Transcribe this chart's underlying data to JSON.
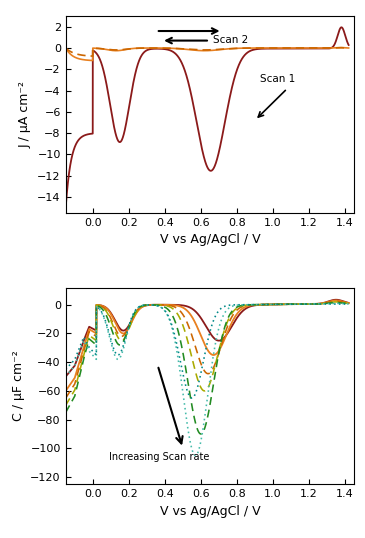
{
  "panel_a": {
    "xlabel": "V vs Ag/AgCl / V",
    "ylabel": "J / μA cm⁻²",
    "xlim": [
      -0.15,
      1.45
    ],
    "ylim": [
      -15.5,
      3
    ],
    "yticks": [
      2,
      0,
      -2,
      -4,
      -6,
      -8,
      -10,
      -12,
      -14
    ],
    "xticks": [
      0.0,
      0.2,
      0.4,
      0.6,
      0.8,
      1.0,
      1.2,
      1.4
    ]
  },
  "panel_b": {
    "xlabel": "V vs Ag/AgCl / V",
    "ylabel": "C / μF cm⁻²",
    "xlim": [
      -0.15,
      1.45
    ],
    "ylim": [
      -125,
      12
    ],
    "yticks": [
      0,
      -20,
      -40,
      -60,
      -80,
      -100,
      -120
    ],
    "xticks": [
      0.0,
      0.2,
      0.4,
      0.6,
      0.8,
      1.0,
      1.2,
      1.4
    ]
  },
  "dark_red": "#8B1A1A",
  "orange": "#E88020",
  "dark_orange": "#CC6600",
  "yellow_green": "#AAAA00",
  "green": "#228B22",
  "light_teal": "#44BBAA",
  "teal": "#008888"
}
